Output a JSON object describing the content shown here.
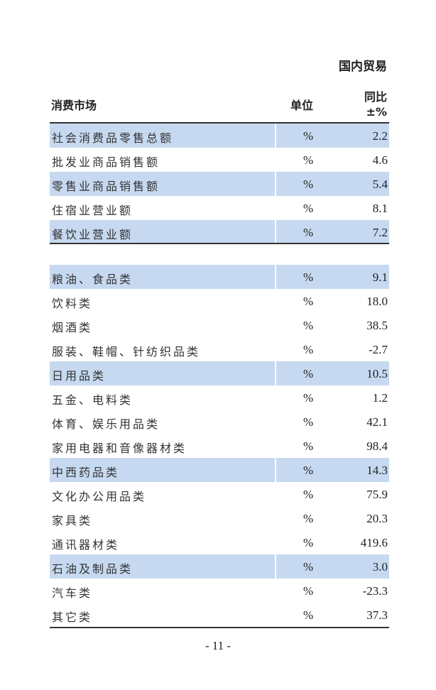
{
  "section_title": "国内贸易",
  "header": {
    "col1": "消费市场",
    "col2": "单位",
    "col3_line1": "同比",
    "col3_line2": "±%"
  },
  "group1": [
    {
      "name": "社会消费品零售总额",
      "unit": "%",
      "value": "2.2",
      "shaded": true
    },
    {
      "name": "批发业商品销售额",
      "unit": "%",
      "value": "4.6",
      "shaded": false
    },
    {
      "name": "零售业商品销售额",
      "unit": "%",
      "value": "5.4",
      "shaded": true
    },
    {
      "name": "住宿业营业额",
      "unit": "%",
      "value": "8.1",
      "shaded": false
    },
    {
      "name": "餐饮业营业额",
      "unit": "%",
      "value": "7.2",
      "shaded": true
    }
  ],
  "group2": [
    {
      "name": "粮油、食品类",
      "unit": "%",
      "value": "9.1",
      "shaded": true
    },
    {
      "name": "饮料类",
      "unit": "%",
      "value": "18.0",
      "shaded": false
    },
    {
      "name": "烟酒类",
      "unit": "%",
      "value": "38.5",
      "shaded": false
    },
    {
      "name": "服装、鞋帽、针纺织品类",
      "unit": "%",
      "value": "-2.7",
      "shaded": false
    },
    {
      "name": "日用品类",
      "unit": "%",
      "value": "10.5",
      "shaded": true
    },
    {
      "name": "五金、电料类",
      "unit": "%",
      "value": "1.2",
      "shaded": false
    },
    {
      "name": "体育、娱乐用品类",
      "unit": "%",
      "value": "42.1",
      "shaded": false
    },
    {
      "name": "家用电器和音像器材类",
      "unit": "%",
      "value": "98.4",
      "shaded": false
    },
    {
      "name": "中西药品类",
      "unit": "%",
      "value": "14.3",
      "shaded": true
    },
    {
      "name": "文化办公用品类",
      "unit": "%",
      "value": "75.9",
      "shaded": false
    },
    {
      "name": "家具类",
      "unit": "%",
      "value": "20.3",
      "shaded": false
    },
    {
      "name": "通讯器材类",
      "unit": "%",
      "value": "419.6",
      "shaded": false
    },
    {
      "name": "石油及制品类",
      "unit": "%",
      "value": "3.0",
      "shaded": true
    },
    {
      "name": "汽车类",
      "unit": "%",
      "value": "-23.3",
      "shaded": false
    },
    {
      "name": "其它类",
      "unit": "%",
      "value": "37.3",
      "shaded": false
    }
  ],
  "shade_color": "#c6d9f0",
  "page_number": "- 11 -"
}
